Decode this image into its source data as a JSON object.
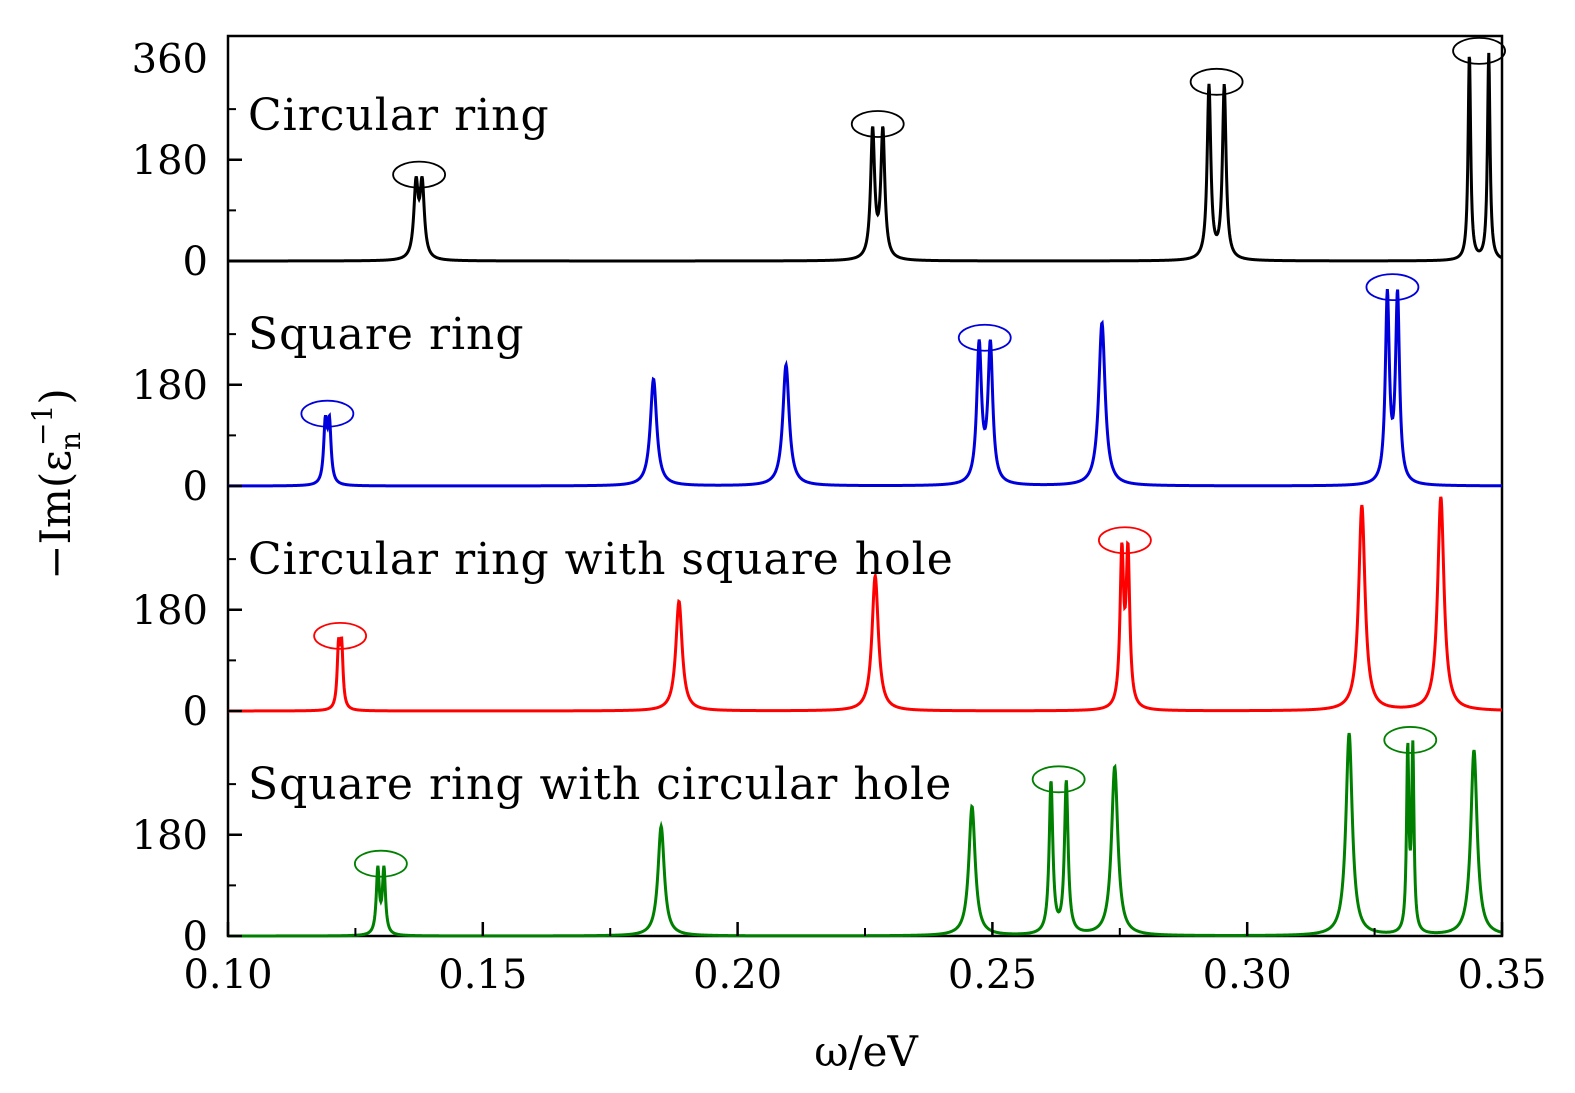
{
  "chart_data": {
    "type": "line",
    "title": "",
    "xlabel": "ω/eV",
    "ylabel": "−Im(ε",
    "ylabel_sub": "n",
    "ylabel_sup": "−1",
    "ylabel_close": ")",
    "xlim": [
      0.1,
      0.35
    ],
    "x_ticks": [
      "0.10",
      "0.15",
      "0.20",
      "0.25",
      "0.30",
      "0.35"
    ],
    "x_tick_values": [
      0.1,
      0.15,
      0.2,
      0.25,
      0.3,
      0.35
    ],
    "ylim_per_panel": [
      0,
      400
    ],
    "top_tick_label": "360",
    "panel_y_ticks": [
      "0",
      "180"
    ],
    "grid": false,
    "panels": [
      {
        "name": "Circular ring",
        "color": "#000000",
        "peaks": [
          {
            "x": 0.1375,
            "height": 150,
            "split": 0.0012,
            "depth": 0.75
          },
          {
            "x": 0.2275,
            "height": 240,
            "split": 0.002,
            "depth": 0.35
          },
          {
            "x": 0.294,
            "height": 315,
            "split": 0.003,
            "depth": 0.15
          },
          {
            "x": 0.3455,
            "height": 370,
            "split": 0.0038,
            "depth": 0.05
          }
        ],
        "highlight_circles": [
          0.1375,
          0.2275,
          0.294,
          0.3455
        ]
      },
      {
        "name": "Square ring",
        "color": "#0000dd",
        "peaks": [
          {
            "x": 0.1195,
            "height": 125,
            "split": 0.0008,
            "depth": 0.8
          },
          {
            "x": 0.1835,
            "height": 190
          },
          {
            "x": 0.2095,
            "height": 215
          },
          {
            "x": 0.2485,
            "height": 260,
            "split": 0.0022,
            "depth": 0.4
          },
          {
            "x": 0.2715,
            "height": 290
          },
          {
            "x": 0.3285,
            "height": 350,
            "split": 0.002,
            "depth": 0.35
          }
        ],
        "highlight_circles": [
          0.1195,
          0.2485,
          0.3285
        ]
      },
      {
        "name": "Circular ring with square hole",
        "color": "#ff0000",
        "peaks": [
          {
            "x": 0.122,
            "height": 130,
            "split": 0.0006,
            "depth": 0.9
          },
          {
            "x": 0.1885,
            "height": 195
          },
          {
            "x": 0.227,
            "height": 240
          },
          {
            "x": 0.276,
            "height": 300,
            "split": 0.0012,
            "depth": 0.6
          },
          {
            "x": 0.3225,
            "height": 365
          },
          {
            "x": 0.338,
            "height": 380
          }
        ],
        "highlight_circles": [
          0.122,
          0.276
        ]
      },
      {
        "name": "Square ring with circular hole",
        "color": "#008000",
        "peaks": [
          {
            "x": 0.13,
            "height": 125,
            "split": 0.0012,
            "depth": 0.5
          },
          {
            "x": 0.185,
            "height": 195
          },
          {
            "x": 0.246,
            "height": 230
          },
          {
            "x": 0.263,
            "height": 275,
            "split": 0.003,
            "depth": 0.15
          },
          {
            "x": 0.274,
            "height": 300
          },
          {
            "x": 0.32,
            "height": 360
          },
          {
            "x": 0.332,
            "height": 345,
            "split": 0.001,
            "depth": 0.45
          },
          {
            "x": 0.3445,
            "height": 330
          }
        ],
        "highlight_circles": [
          0.13,
          0.263,
          0.332
        ]
      }
    ]
  }
}
